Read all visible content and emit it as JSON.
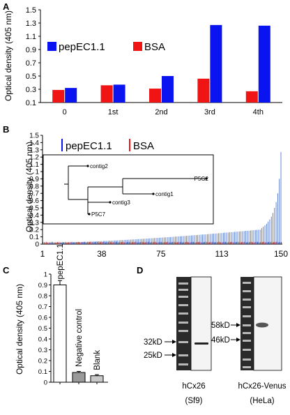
{
  "colors": {
    "pep": "#0a14f0",
    "bsa": "#f01414",
    "pep_b": "#3f66cc",
    "bsa_b": "#8a1a1a",
    "bar_white": "#ffffff",
    "bar_gray": "#9a9a9a",
    "bar_lightgray": "#c8c8c8",
    "gel_dark": "#2a2a2a"
  },
  "panels": {
    "A": "A",
    "B": "B",
    "C": "C",
    "D": "D"
  },
  "chart_data": [
    {
      "type": "bar",
      "panel": "A",
      "categories": [
        "0",
        "1st",
        "2nd",
        "3rd",
        "4th"
      ],
      "series": [
        {
          "name": "BSA",
          "values": [
            0.29,
            0.36,
            0.31,
            0.46,
            0.27
          ]
        },
        {
          "name": "pepEC1.1",
          "values": [
            0.32,
            0.37,
            0.5,
            1.27,
            1.26
          ]
        }
      ],
      "ylabel": "Optical density (405 nm)",
      "ylim": [
        0.1,
        1.5
      ],
      "yticks": [
        "0.1",
        "0.3",
        "0.5",
        "0.7",
        "0.9",
        "1.1",
        "1.3",
        "1.5"
      ],
      "legend": [
        "pepEC1.1",
        "BSA"
      ],
      "legend_position": "middle"
    },
    {
      "type": "bar",
      "panel": "B",
      "x_range": [
        1,
        150
      ],
      "xticks": [
        "1",
        "38",
        "75",
        "113",
        "150"
      ],
      "series": [
        {
          "name": "pepEC1.1",
          "description": "sorted ascending; last clones rise sharply",
          "values_start": 0.015,
          "values_end_before_rise": 0.2,
          "values_max": 1.27
        },
        {
          "name": "BSA",
          "values_approx": 0.025
        }
      ],
      "ylabel": "Optical density (405 nm)",
      "ylim": [
        0,
        1.5
      ],
      "yticks": [
        "0",
        "0.1",
        "0.2",
        "0.3",
        "0.4",
        "0.5",
        "0.6",
        "0.7",
        "0.8",
        "0.9",
        "1",
        "1.1",
        "1.2",
        "1.3",
        "1.4",
        "1.5"
      ],
      "legend": [
        "pepEC1.1",
        "BSA"
      ],
      "legend_position": "top-left",
      "inset_tree_labels": [
        "contig2",
        "P5G2",
        "contig1",
        "contig3",
        "P5C7"
      ]
    },
    {
      "type": "bar",
      "panel": "C",
      "categories": [
        "pepEC1.1",
        "Negative control",
        "Blank"
      ],
      "values": [
        0.9,
        0.09,
        0.06
      ],
      "errors": [
        0.04,
        0.01,
        0.01
      ],
      "ylabel": "Optical density (405 nm)",
      "ylim": [
        0,
        1
      ],
      "yticks": [
        "0",
        "0.1",
        "0.2",
        "0.3",
        "0.4",
        "0.5",
        "0.6",
        "0.7",
        "0.8",
        "0.9",
        "1"
      ]
    }
  ],
  "panel_d": {
    "left_markers": [
      "32kD",
      "25kD"
    ],
    "left_caption": [
      "hCx26",
      "(Sf9)"
    ],
    "right_markers": [
      "58kD",
      "46kD"
    ],
    "right_caption": [
      "hCx26-Venus",
      "(HeLa)"
    ]
  }
}
